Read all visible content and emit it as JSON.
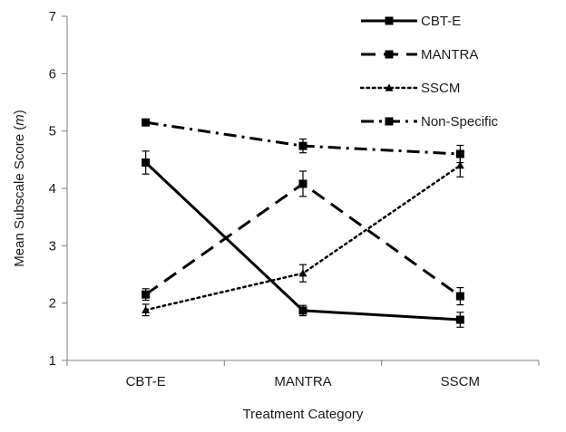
{
  "chart_data": {
    "type": "line",
    "categories": [
      "CBT-E",
      "MANTRA",
      "SSCM"
    ],
    "xlabel": "Treatment Category",
    "ylabel_main": "Mean Subscale Score (",
    "ylabel_italic": "m",
    "ylabel_end": ")",
    "ylim": [
      1,
      7
    ],
    "yticks": [
      "1",
      "2",
      "3",
      "4",
      "5",
      "6",
      "7"
    ],
    "grid": false,
    "legend_position": "top-right",
    "series": [
      {
        "name": "CBT-E",
        "values": [
          4.45,
          1.87,
          1.71
        ],
        "errors": [
          0.2,
          0.09,
          0.13
        ],
        "style": "solid",
        "marker": "square"
      },
      {
        "name": "MANTRA",
        "values": [
          2.15,
          4.08,
          2.12
        ],
        "errors": [
          0.1,
          0.22,
          0.15
        ],
        "style": "dash",
        "marker": "square"
      },
      {
        "name": "SSCM",
        "values": [
          1.88,
          2.52,
          4.4
        ],
        "errors": [
          0.1,
          0.15,
          0.2
        ],
        "style": "dot",
        "marker": "triangle"
      },
      {
        "name": "Non-Specific",
        "values": [
          5.15,
          4.74,
          4.6
        ],
        "errors": [
          0.04,
          0.12,
          0.15
        ],
        "style": "dashdot",
        "marker": "square"
      }
    ]
  },
  "colors": {
    "series": "#000000",
    "axis": "#808080",
    "text": "#1a1a1a"
  }
}
